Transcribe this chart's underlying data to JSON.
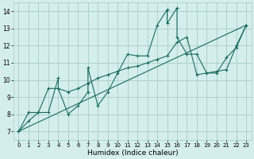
{
  "xlabel": "Humidex (Indice chaleur)",
  "bg_color": "#d4eeed",
  "line_color": "#1a6b5a",
  "grid_color": "#a8cdc8",
  "xlim": [
    -0.5,
    23.5
  ],
  "ylim": [
    6.5,
    14.5
  ],
  "xticks": [
    0,
    1,
    2,
    3,
    4,
    5,
    6,
    7,
    8,
    9,
    10,
    11,
    12,
    13,
    14,
    15,
    16,
    17,
    18,
    19,
    20,
    21,
    22,
    23
  ],
  "yticks": [
    7,
    8,
    9,
    10,
    11,
    12,
    13,
    14
  ],
  "series1_x": [
    0,
    1,
    2,
    3,
    4,
    4,
    5,
    6,
    7,
    7,
    8,
    9,
    10,
    11,
    12,
    13,
    14,
    15,
    15,
    16,
    16,
    17,
    17,
    18,
    19,
    20,
    21,
    22,
    23
  ],
  "series1_y": [
    7.0,
    8.1,
    8.1,
    8.1,
    10.1,
    9.5,
    8.0,
    8.5,
    9.3,
    10.7,
    8.5,
    9.3,
    10.4,
    11.5,
    11.4,
    11.4,
    13.2,
    14.1,
    13.3,
    14.2,
    12.5,
    11.5,
    11.5,
    11.5,
    10.4,
    10.4,
    11.3,
    11.9,
    13.2
  ],
  "series2_x": [
    0,
    1,
    2,
    3,
    4,
    5,
    6,
    7,
    8,
    9,
    10,
    11,
    12,
    13,
    14,
    15,
    16,
    17,
    18,
    19,
    20,
    21,
    22,
    23
  ],
  "series2_y": [
    7.0,
    7.6,
    8.1,
    9.5,
    9.5,
    9.3,
    9.5,
    9.8,
    10.1,
    10.3,
    10.5,
    10.7,
    10.8,
    11.0,
    11.2,
    11.4,
    12.2,
    12.5,
    10.3,
    10.4,
    10.5,
    10.6,
    12.0,
    13.2
  ],
  "series3_x": [
    0,
    23
  ],
  "series3_y": [
    7.0,
    13.2
  ]
}
